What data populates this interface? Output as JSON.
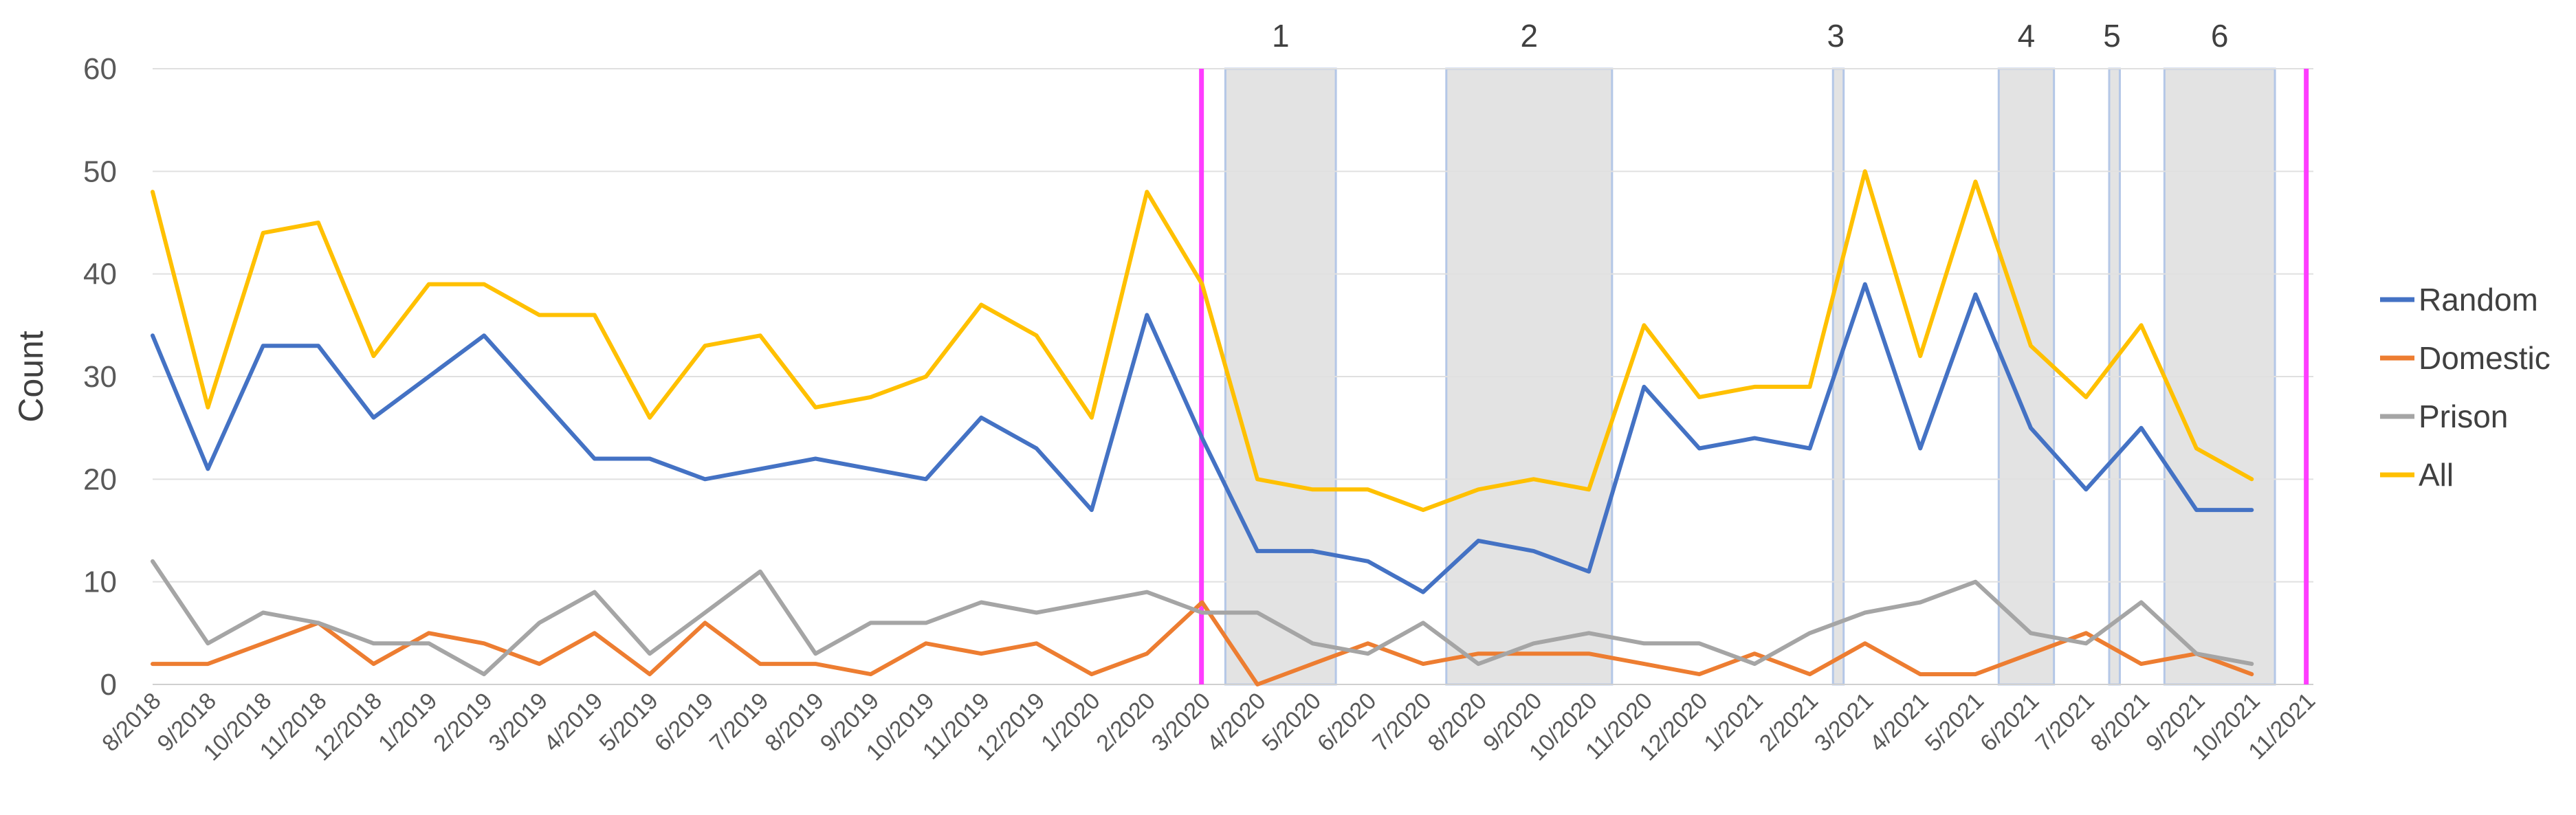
{
  "chart_data": {
    "type": "line",
    "title": "",
    "xlabel": "",
    "ylabel": "Count",
    "ylim": [
      0,
      60
    ],
    "yticks": [
      "0",
      "10",
      "20",
      "30",
      "40",
      "50",
      "60"
    ],
    "grid": "horizontal",
    "legend_position": "right",
    "categories": [
      "8/2018",
      "9/2018",
      "10/2018",
      "11/2018",
      "12/2018",
      "1/2019",
      "2/2019",
      "3/2019",
      "4/2019",
      "5/2019",
      "6/2019",
      "7/2019",
      "8/2019",
      "9/2019",
      "10/2019",
      "11/2019",
      "12/2019",
      "1/2020",
      "2/2020",
      "3/2020",
      "4/2020",
      "5/2020",
      "6/2020",
      "7/2020",
      "8/2020",
      "9/2020",
      "10/2020",
      "11/2020",
      "12/2020",
      "1/2021",
      "2/2021",
      "3/2021",
      "4/2021",
      "5/2021",
      "6/2021",
      "7/2021",
      "8/2021",
      "9/2021",
      "10/2021",
      "11/2021"
    ],
    "series": [
      {
        "name": "Random",
        "color": "#4472C4",
        "values": [
          34,
          21,
          33,
          33,
          26,
          30,
          34,
          28,
          22,
          22,
          20,
          21,
          22,
          21,
          20,
          26,
          23,
          17,
          36,
          24,
          13,
          13,
          12,
          9,
          14,
          13,
          11,
          29,
          23,
          24,
          23,
          39,
          23,
          38,
          25,
          19,
          25,
          17,
          17,
          null
        ]
      },
      {
        "name": "Domestic",
        "color": "#ED7D31",
        "values": [
          2,
          2,
          4,
          6,
          2,
          5,
          4,
          2,
          5,
          1,
          6,
          2,
          2,
          1,
          4,
          3,
          4,
          1,
          3,
          8,
          0,
          2,
          4,
          2,
          3,
          3,
          3,
          2,
          1,
          3,
          1,
          4,
          1,
          1,
          3,
          5,
          2,
          3,
          1,
          null
        ]
      },
      {
        "name": "Prison",
        "color": "#A5A5A5",
        "values": [
          12,
          4,
          7,
          6,
          4,
          4,
          1,
          6,
          9,
          3,
          7,
          11,
          3,
          6,
          6,
          8,
          7,
          8,
          9,
          7,
          7,
          4,
          3,
          6,
          2,
          4,
          5,
          4,
          4,
          2,
          5,
          7,
          8,
          10,
          5,
          4,
          8,
          3,
          2,
          null
        ]
      },
      {
        "name": "All",
        "color": "#FFC000",
        "values": [
          48,
          27,
          44,
          45,
          32,
          39,
          39,
          36,
          36,
          26,
          33,
          34,
          27,
          28,
          30,
          37,
          34,
          26,
          48,
          39,
          20,
          19,
          19,
          17,
          19,
          20,
          19,
          35,
          28,
          29,
          29,
          50,
          32,
          49,
          33,
          28,
          35,
          23,
          20,
          null
        ]
      }
    ],
    "periods": [
      {
        "label": "1",
        "start_month": "3/2020",
        "end_month": "5/2020"
      },
      {
        "label": "2",
        "start_month": "7/2020",
        "end_month": "10/2020"
      },
      {
        "label": "3",
        "start_month": "2/2021",
        "end_month": "2/2021"
      },
      {
        "label": "4",
        "start_month": "5/2021",
        "end_month": "6/2021"
      },
      {
        "label": "5",
        "start_month": "7/2021",
        "end_month": "7/2021"
      },
      {
        "label": "6",
        "start_month": "8/2021",
        "end_month": "10/2021"
      }
    ],
    "markers": [
      {
        "month": "3/2020",
        "color": "#FF3CFF"
      },
      {
        "month": "11/2021",
        "color": "#FF3CFF"
      }
    ],
    "shade_color": "#E3E3E3",
    "shade_edge_color": "#B4C7E7",
    "grid_color": "#E0E0E0"
  }
}
